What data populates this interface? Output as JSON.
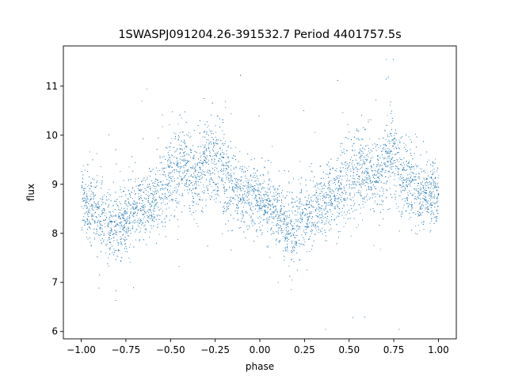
{
  "chart_data": {
    "type": "scatter",
    "title": "1SWASPJ091204.26-391532.7 Period 4401757.5s",
    "xlabel": "phase",
    "ylabel": "flux",
    "xlim": [
      -1.1,
      1.1
    ],
    "ylim": [
      5.85,
      11.82
    ],
    "xticks": [
      -1.0,
      -0.75,
      -0.5,
      -0.25,
      0.0,
      0.25,
      0.5,
      0.75,
      1.0
    ],
    "xtick_labels": [
      "−1.00",
      "−0.75",
      "−0.50",
      "−0.25",
      "0.00",
      "0.25",
      "0.50",
      "0.75",
      "1.00"
    ],
    "yticks": [
      6,
      7,
      8,
      9,
      10,
      11
    ],
    "ytick_labels": [
      "6",
      "7",
      "8",
      "9",
      "10",
      "11"
    ],
    "grid": false,
    "marker_color": "#1f77b4",
    "phase_profile": {
      "phase": [
        0.0,
        0.05,
        0.1,
        0.15,
        0.2,
        0.25,
        0.3,
        0.35,
        0.4,
        0.45,
        0.5,
        0.55,
        0.6,
        0.65,
        0.7,
        0.75,
        0.8,
        0.85,
        0.9,
        0.95,
        1.0
      ],
      "flux_center": [
        8.75,
        8.55,
        8.35,
        8.15,
        8.1,
        8.35,
        8.5,
        8.6,
        8.7,
        8.95,
        9.15,
        9.35,
        9.3,
        9.1,
        9.5,
        9.55,
        9.25,
        8.9,
        8.75,
        8.8,
        8.75
      ],
      "flux_spread": [
        0.45,
        0.45,
        0.45,
        0.5,
        0.5,
        0.45,
        0.45,
        0.45,
        0.45,
        0.5,
        0.55,
        0.6,
        0.55,
        0.5,
        0.6,
        0.6,
        0.55,
        0.5,
        0.45,
        0.45,
        0.45
      ]
    },
    "flux_range": [
      6.05,
      11.55
    ]
  }
}
